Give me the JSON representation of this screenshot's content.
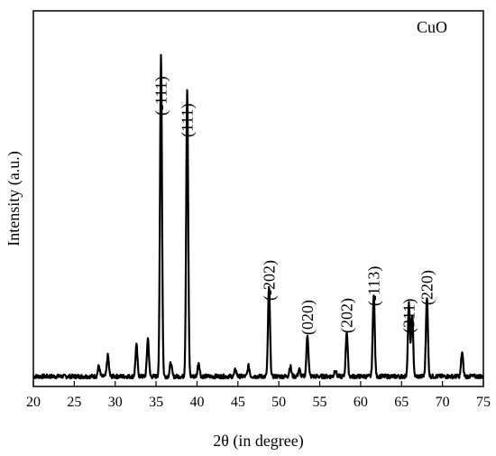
{
  "chart_data": {
    "type": "line",
    "title": "",
    "legend": "CuO",
    "xlabel": "2θ (in degree)",
    "ylabel": "Intensity (a.u.)",
    "xlim": [
      20,
      75
    ],
    "x_ticks": [
      20,
      25,
      30,
      35,
      40,
      45,
      50,
      55,
      60,
      65,
      70,
      75
    ],
    "y_ticks": [],
    "grid": false,
    "series": [
      {
        "peaks": [
          {
            "x": 28.0,
            "y": 0.03
          },
          {
            "x": 29.1,
            "y": 0.06
          },
          {
            "x": 32.6,
            "y": 0.09
          },
          {
            "x": 34.0,
            "y": 0.11
          },
          {
            "x": 35.6,
            "y": 0.93
          },
          {
            "x": 36.8,
            "y": 0.04
          },
          {
            "x": 38.8,
            "y": 0.83
          },
          {
            "x": 40.2,
            "y": 0.04
          },
          {
            "x": 44.7,
            "y": 0.02
          },
          {
            "x": 46.3,
            "y": 0.03
          },
          {
            "x": 48.8,
            "y": 0.26
          },
          {
            "x": 51.4,
            "y": 0.03
          },
          {
            "x": 52.5,
            "y": 0.02
          },
          {
            "x": 53.5,
            "y": 0.12
          },
          {
            "x": 56.9,
            "y": 0.02
          },
          {
            "x": 58.3,
            "y": 0.13
          },
          {
            "x": 61.6,
            "y": 0.24
          },
          {
            "x": 65.9,
            "y": 0.21
          },
          {
            "x": 66.3,
            "y": 0.18
          },
          {
            "x": 68.1,
            "y": 0.23
          },
          {
            "x": 72.4,
            "y": 0.07
          }
        ]
      }
    ],
    "annotations": [
      {
        "text": "(-111)",
        "x": 35.6
      },
      {
        "text": "(111)",
        "x": 38.8
      },
      {
        "text": "(-202)",
        "x": 48.8
      },
      {
        "text": "(020)",
        "x": 53.5
      },
      {
        "text": "(202)",
        "x": 58.3
      },
      {
        "text": "(-113)",
        "x": 61.6
      },
      {
        "text": "(311)",
        "x": 65.9
      },
      {
        "text": "(220)",
        "x": 68.1
      }
    ]
  }
}
